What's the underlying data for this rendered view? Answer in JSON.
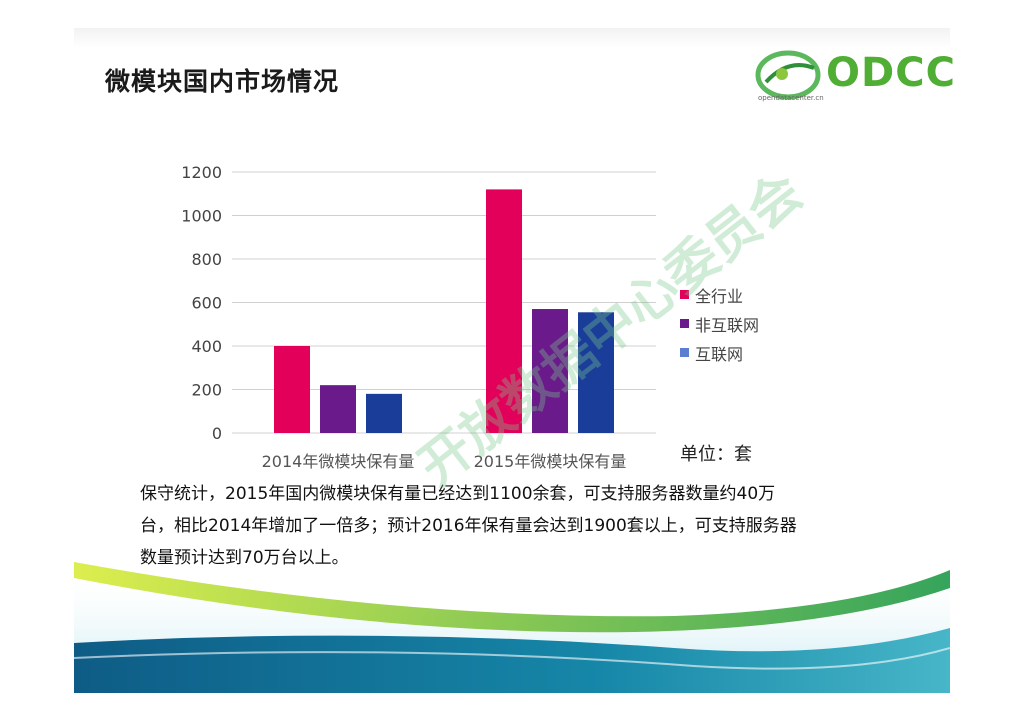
{
  "slide": {
    "title": "微模块国内市场情况",
    "logo_text": "ODCC",
    "logo_sub": "opendatacenter.cn",
    "unit_label": "单位：套",
    "paragraph": [
      "保守统计，2015年国内微模块保有量已经达到1100余套，可支持服务器数量约40万",
      "台，相比2014年增加了一倍多；预计2016年保有量会达到1900套以上，可支持服务器",
      "数量预计达到70万台以上。"
    ],
    "watermark": "开放数据中心委员会"
  },
  "colors": {
    "series1": "#e2005a",
    "series2": "#6a1a8a",
    "series3": "#1b3d9a",
    "legend3": "#5a7fd0",
    "axis": "#d0d0d0",
    "ticks": "#444444"
  },
  "chart_data": {
    "type": "bar",
    "title": "",
    "xlabel": "",
    "ylabel": "",
    "categories": [
      "2014年微模块保有量",
      "2015年微模块保有量"
    ],
    "ylim": [
      0,
      1200
    ],
    "yticks": [
      0,
      200,
      400,
      600,
      800,
      1000,
      1200
    ],
    "grid": true,
    "legend_position": "right",
    "series": [
      {
        "name": "全行业",
        "values": [
          400,
          1120
        ]
      },
      {
        "name": "非互联网",
        "values": [
          220,
          570
        ]
      },
      {
        "name": "互联网",
        "values": [
          180,
          555
        ]
      }
    ]
  }
}
